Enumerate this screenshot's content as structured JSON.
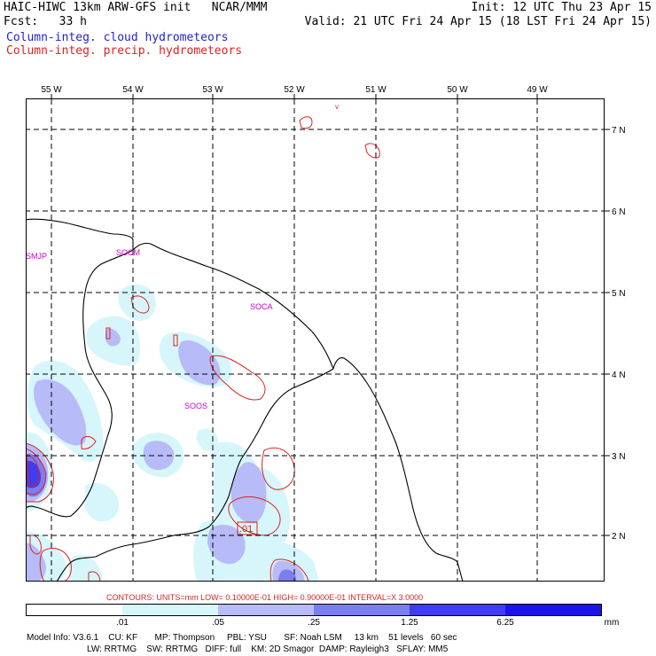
{
  "header": {
    "title_left": "HAIC-HIWC 13km ARW-GFS init   NCAR/MMM",
    "fcst": "Fcst:   33 h",
    "init": "Init: 12 UTC Thu 23 Apr 15",
    "valid": "Valid: 21 UTC Fri 24 Apr 15 (18 LST Fri 24 Apr 15)",
    "legend_cloud": "Column-integ. cloud hydrometeors",
    "legend_precip": "Column-integ. precip. hydrometeors"
  },
  "map": {
    "lon_labels": [
      "55 W",
      "54 W",
      "53 W",
      "52 W",
      "51 W",
      "50 W",
      "49 W"
    ],
    "lat_labels": [
      "7 N",
      "6 N",
      "5 N",
      "4 N",
      "3 N",
      "2 N"
    ],
    "stations": [
      "SMJP",
      "SOCM",
      "SOCA",
      "SOOS"
    ],
    "contour_label": ".01",
    "stray_label": "v"
  },
  "footer": {
    "contours_line": "CONTOURS:  UNITS=mm  LOW= 0.10000E-01  HIGH= 0.90000E-01  INTERVAL=X  3.0000",
    "colorbar_labels": [
      ".01",
      ".05",
      ".25",
      "1.25",
      "6.25"
    ],
    "colorbar_unit": "mm",
    "colorbar_colors": [
      "#ffffff",
      "#d6f6fb",
      "#b7bbf7",
      "#7b7ef2",
      "#3f3ded",
      "#1c14e8"
    ],
    "model_info_1": "Model Info: V3.6.1    CU: KF       MP: Thompson     PBL: YSU       SF: Noah LSM     13 km    51 levels   60 sec",
    "model_info_2": "LW: RRTMG    SW: RRTMG   DIFF: full    KM: 2D Smagor  DAMP: Rayleigh3   SFLAY: MM5"
  }
}
